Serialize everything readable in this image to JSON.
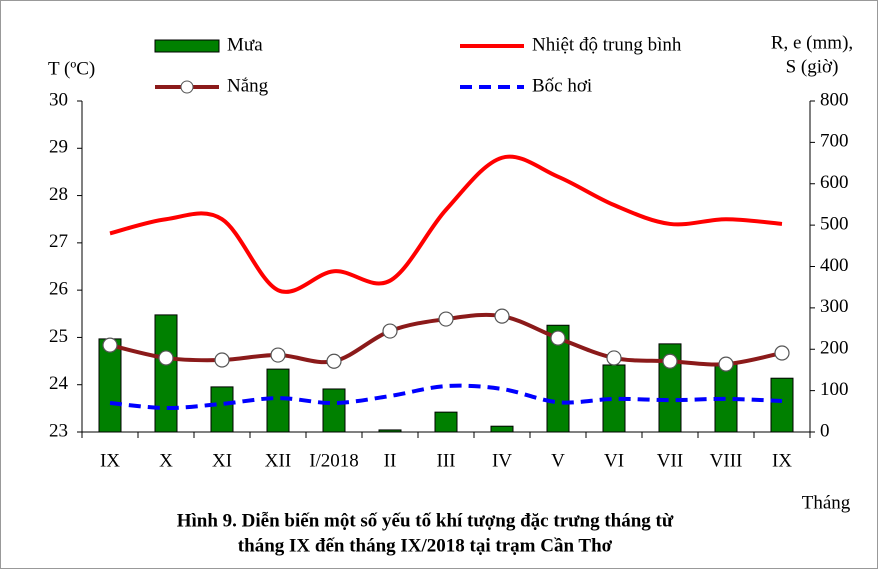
{
  "chart_data": {
    "type": "bar",
    "caption": [
      "Hình 9. Diễn biến một số yếu tố khí tượng đặc trưng tháng từ",
      "tháng IX đến tháng IX/2018 tại trạm Cần Thơ"
    ],
    "ylabel": "T (ºC)",
    "y2label": [
      "R, e (mm),",
      "S (giờ)"
    ],
    "xlabel": "Tháng",
    "categories": [
      "IX",
      "X",
      "XI",
      "XII",
      "I/2018",
      "II",
      "III",
      "IV",
      "V",
      "VI",
      "VII",
      "VIII",
      "IX"
    ],
    "ylim": [
      23,
      30
    ],
    "yticks": [
      23,
      24,
      25,
      26,
      27,
      28,
      29,
      30
    ],
    "y2lim": [
      0,
      800
    ],
    "y2ticks": [
      0,
      100,
      200,
      300,
      400,
      500,
      600,
      700,
      800
    ],
    "series": [
      {
        "name": "Mưa",
        "type": "bar",
        "axis": "y2",
        "color": "#008000",
        "values": [
          225,
          283,
          109,
          152,
          104,
          5,
          48,
          14,
          258,
          162,
          213,
          164,
          130
        ]
      },
      {
        "name": "Nhiệt độ trung bình",
        "type": "line",
        "color": "#ff0000",
        "values": [
          27.2,
          27.5,
          27.5,
          26.0,
          26.4,
          26.2,
          27.7,
          28.8,
          28.4,
          27.8,
          27.4,
          27.5,
          27.4
        ]
      },
      {
        "name": "Nắng",
        "type": "line",
        "axis": "y2",
        "color": "#8b1a1a",
        "marker": true,
        "values": [
          210,
          179,
          174,
          186,
          171,
          244,
          273,
          280,
          227,
          179,
          171,
          164,
          191
        ]
      },
      {
        "name": "Bốc hơi",
        "type": "line",
        "axis": "y2",
        "color": "#0000ff",
        "dashed": true,
        "values": [
          70,
          58,
          68,
          82,
          70,
          87,
          111,
          104,
          72,
          80,
          77,
          80,
          75
        ]
      }
    ]
  }
}
